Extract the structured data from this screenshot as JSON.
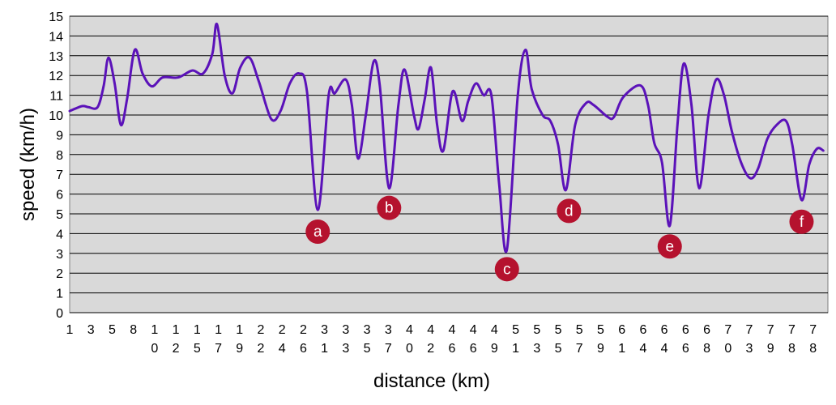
{
  "chart_data": {
    "type": "line",
    "title": "",
    "xlabel": "distance (km)",
    "ylabel": "speed (km/h)",
    "ylim": [
      0,
      15
    ],
    "y_ticks": [
      "0",
      "1",
      "2",
      "3",
      "4",
      "5",
      "6",
      "7",
      "8",
      "9",
      "10",
      "11",
      "12",
      "13",
      "14",
      "15"
    ],
    "x_tick_labels": [
      "1",
      "3",
      "5",
      "8",
      "10",
      "12",
      "15",
      "17",
      "19",
      "22",
      "24",
      "26",
      "31",
      "33",
      "35",
      "37",
      "40",
      "42",
      "46",
      "46",
      "49",
      "51",
      "53",
      "55",
      "57",
      "59",
      "61",
      "64",
      "64",
      "66",
      "68",
      "70",
      "73",
      "79",
      "78",
      "78"
    ],
    "grid": true,
    "plot_background": "#d9d9d9",
    "line_color": "#5b12b9",
    "marker_color": "#b5122e",
    "series": [
      {
        "values": [
          [
            0.0,
            10.2
          ],
          [
            0.4,
            10.45
          ],
          [
            0.6,
            10.4
          ],
          [
            0.9,
            10.4
          ],
          [
            1.1,
            11.5
          ],
          [
            1.25,
            12.9
          ],
          [
            1.45,
            11.6
          ],
          [
            1.65,
            9.5
          ],
          [
            1.85,
            10.8
          ],
          [
            2.1,
            13.3
          ],
          [
            2.35,
            12.1
          ],
          [
            2.65,
            11.45
          ],
          [
            3.0,
            11.9
          ],
          [
            3.5,
            11.9
          ],
          [
            3.95,
            12.25
          ],
          [
            4.3,
            12.1
          ],
          [
            4.6,
            13.1
          ],
          [
            4.75,
            14.6
          ],
          [
            5.0,
            12.0
          ],
          [
            5.25,
            11.1
          ],
          [
            5.5,
            12.4
          ],
          [
            5.8,
            12.9
          ],
          [
            6.1,
            11.7
          ],
          [
            6.5,
            9.8
          ],
          [
            6.8,
            10.2
          ],
          [
            7.1,
            11.6
          ],
          [
            7.4,
            12.1
          ],
          [
            7.65,
            11.2
          ],
          [
            8.0,
            5.2
          ],
          [
            8.35,
            11.0
          ],
          [
            8.55,
            11.1
          ],
          [
            8.9,
            11.8
          ],
          [
            9.1,
            10.5
          ],
          [
            9.3,
            7.8
          ],
          [
            9.55,
            10.0
          ],
          [
            9.8,
            12.7
          ],
          [
            10.0,
            11.5
          ],
          [
            10.3,
            6.3
          ],
          [
            10.6,
            10.5
          ],
          [
            10.8,
            12.3
          ],
          [
            11.1,
            10.0
          ],
          [
            11.25,
            9.3
          ],
          [
            11.45,
            10.8
          ],
          [
            11.65,
            12.4
          ],
          [
            11.85,
            9.5
          ],
          [
            12.05,
            8.2
          ],
          [
            12.35,
            11.2
          ],
          [
            12.65,
            9.7
          ],
          [
            12.85,
            10.7
          ],
          [
            13.1,
            11.6
          ],
          [
            13.35,
            11.0
          ],
          [
            13.6,
            11.0
          ],
          [
            13.85,
            6.5
          ],
          [
            14.1,
            3.2
          ],
          [
            14.45,
            11.0
          ],
          [
            14.7,
            13.3
          ],
          [
            14.9,
            11.3
          ],
          [
            15.25,
            10.0
          ],
          [
            15.5,
            9.7
          ],
          [
            15.75,
            8.5
          ],
          [
            16.0,
            6.2
          ],
          [
            16.3,
            9.5
          ],
          [
            16.65,
            10.6
          ],
          [
            16.9,
            10.5
          ],
          [
            17.35,
            9.9
          ],
          [
            17.55,
            9.9
          ],
          [
            17.85,
            10.9
          ],
          [
            18.4,
            11.5
          ],
          [
            18.65,
            10.5
          ],
          [
            18.85,
            8.6
          ],
          [
            19.1,
            7.6
          ],
          [
            19.35,
            4.4
          ],
          [
            19.6,
            9.5
          ],
          [
            19.8,
            12.6
          ],
          [
            20.05,
            10.5
          ],
          [
            20.3,
            6.3
          ],
          [
            20.6,
            10.0
          ],
          [
            20.85,
            11.8
          ],
          [
            21.1,
            11.0
          ],
          [
            21.35,
            9.2
          ],
          [
            21.65,
            7.6
          ],
          [
            21.95,
            6.8
          ],
          [
            22.2,
            7.3
          ],
          [
            22.5,
            8.8
          ],
          [
            22.8,
            9.5
          ],
          [
            23.1,
            9.7
          ],
          [
            23.3,
            8.5
          ],
          [
            23.6,
            5.7
          ],
          [
            23.85,
            7.5
          ],
          [
            24.1,
            8.3
          ],
          [
            24.3,
            8.2
          ]
        ]
      }
    ],
    "annotations": [
      {
        "label": "a",
        "x": 8.0,
        "y": 4.1
      },
      {
        "label": "b",
        "x": 10.3,
        "y": 5.3
      },
      {
        "label": "c",
        "x": 14.1,
        "y": 2.2
      },
      {
        "label": "d",
        "x": 16.1,
        "y": 5.15
      },
      {
        "label": "e",
        "x": 19.35,
        "y": 3.35
      },
      {
        "label": "f",
        "x": 23.6,
        "y": 4.6
      }
    ]
  }
}
